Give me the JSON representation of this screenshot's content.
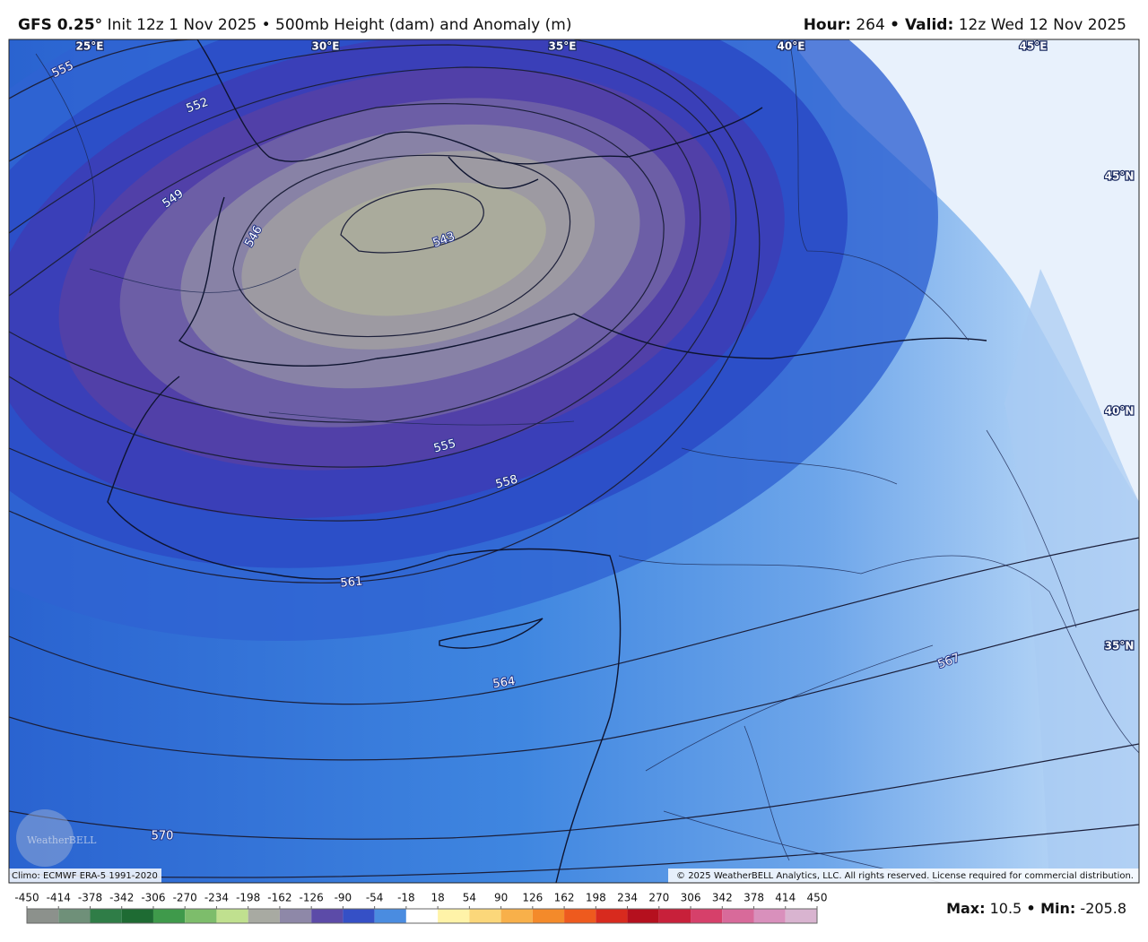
{
  "header": {
    "model": "GFS 0.25°",
    "init": "Init 12z 1 Nov 2025 • 500mb Height (dam) and Anomaly (m)",
    "hour_label": "Hour:",
    "hour": 264,
    "valid_label": "• Valid:",
    "valid": "12z Wed 12 Nov 2025"
  },
  "map": {
    "longitude_labels": [
      "25°E",
      "30°E",
      "35°E",
      "40°E",
      "45°E"
    ],
    "latitude_labels": [
      "45°N",
      "40°N",
      "35°N"
    ],
    "contour_labels": [
      555,
      552,
      549,
      546,
      543,
      555,
      558,
      561,
      564,
      567,
      570
    ],
    "logo": "WeatherBELL"
  },
  "footer": {
    "climo": "Climo: ECMWF ERA-5 1991-2020",
    "copyright": "© 2025 WeatherBELL Analytics, LLC. All rights reserved. License required for commercial distribution.",
    "max_label": "Max:",
    "max": 10.5,
    "min_label": "• Min:",
    "min": -205.8
  },
  "colorbar": {
    "ticks": [
      -450,
      -414,
      -378,
      -342,
      -306,
      -270,
      -234,
      -198,
      -162,
      -126,
      -90,
      -54,
      -18,
      18,
      54,
      90,
      126,
      162,
      198,
      234,
      270,
      306,
      342,
      378,
      414,
      450
    ],
    "colors": [
      "#8c918c",
      "#6f9079",
      "#2f7d47",
      "#1e6b33",
      "#3f9a4b",
      "#7dbd6b",
      "#c0e08f",
      "#a8aaa2",
      "#8e88a8",
      "#5c4ba8",
      "#3550c6",
      "#4a8ce0",
      "#ffffff",
      "#fff3a8",
      "#fbd77a",
      "#f8b04a",
      "#f48a2a",
      "#ee5a1e",
      "#d82a1e",
      "#b5101e",
      "#c8203a",
      "#d6406a",
      "#d86a9a",
      "#d990bc",
      "#d9b4d0"
    ]
  }
}
